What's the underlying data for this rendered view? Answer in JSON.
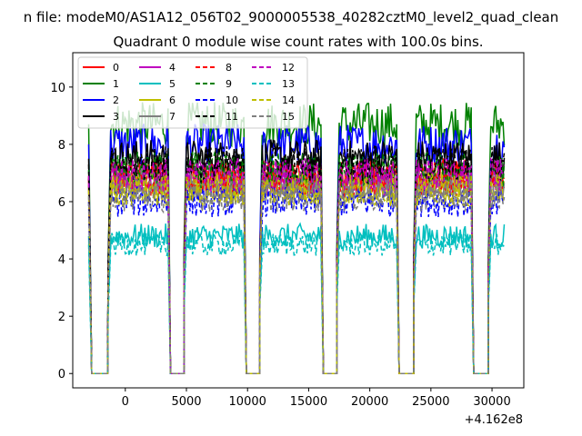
{
  "chart_data": {
    "type": "line",
    "suptitle": "n file: modeM0/AS1A12_056T02_9000005538_40282cztM0_level2_quad_clean",
    "title": "Quadrant 0 module wise count rates with 100.0s bins.",
    "xlabel": "",
    "ylabel": "",
    "x_offset_label": "+4.162e8",
    "xlim": [
      -4300,
      32600
    ],
    "ylim": [
      -0.5,
      11.2
    ],
    "xticks": [
      0,
      5000,
      10000,
      15000,
      20000,
      25000,
      30000
    ],
    "xtick_labels": [
      "0",
      "5000",
      "10000",
      "15000",
      "20000",
      "25000",
      "30000"
    ],
    "yticks": [
      0,
      2,
      4,
      6,
      8,
      10
    ],
    "ytick_labels": [
      "0",
      "2",
      "4",
      "6",
      "8",
      "10"
    ],
    "grid": false,
    "legend_position": "upper-left",
    "legend_columns": 4,
    "segments": [
      {
        "start": -3000,
        "end": -2750,
        "kind": "drop"
      },
      {
        "start": -2750,
        "end": -1400,
        "kind": "gap"
      },
      {
        "start": -1400,
        "end": 3500,
        "kind": "on"
      },
      {
        "start": 3500,
        "end": 3700,
        "kind": "drop"
      },
      {
        "start": 3700,
        "end": 4800,
        "kind": "gap"
      },
      {
        "start": 4800,
        "end": 9700,
        "kind": "on"
      },
      {
        "start": 9700,
        "end": 9900,
        "kind": "drop"
      },
      {
        "start": 9900,
        "end": 11000,
        "kind": "gap"
      },
      {
        "start": 11000,
        "end": 16000,
        "kind": "on"
      },
      {
        "start": 16000,
        "end": 16200,
        "kind": "drop"
      },
      {
        "start": 16200,
        "end": 17300,
        "kind": "gap"
      },
      {
        "start": 17300,
        "end": 22200,
        "kind": "on"
      },
      {
        "start": 22200,
        "end": 22400,
        "kind": "drop"
      },
      {
        "start": 22400,
        "end": 23600,
        "kind": "gap"
      },
      {
        "start": 23600,
        "end": 28300,
        "kind": "on"
      },
      {
        "start": 28300,
        "end": 28500,
        "kind": "drop"
      },
      {
        "start": 28500,
        "end": 29700,
        "kind": "gap"
      },
      {
        "start": 29700,
        "end": 31000,
        "kind": "on"
      }
    ],
    "series": [
      {
        "name": "0",
        "color": "#ff0000",
        "dash": "solid",
        "level": 6.9
      },
      {
        "name": "1",
        "color": "#008000",
        "dash": "solid",
        "level": 8.7
      },
      {
        "name": "2",
        "color": "#0000ff",
        "dash": "solid",
        "level": 8.0
      },
      {
        "name": "3",
        "color": "#000000",
        "dash": "solid",
        "level": 7.5
      },
      {
        "name": "4",
        "color": "#bf00bf",
        "dash": "solid",
        "level": 6.8
      },
      {
        "name": "5",
        "color": "#00bfbf",
        "dash": "solid",
        "level": 4.8
      },
      {
        "name": "6",
        "color": "#bfbf00",
        "dash": "solid",
        "level": 6.5
      },
      {
        "name": "7",
        "color": "#7f7f7f",
        "dash": "solid",
        "level": 6.6
      },
      {
        "name": "8",
        "color": "#ff0000",
        "dash": "dashed",
        "level": 6.8
      },
      {
        "name": "9",
        "color": "#008000",
        "dash": "dashed",
        "level": 7.1
      },
      {
        "name": "10",
        "color": "#0000ff",
        "dash": "dashed",
        "level": 6.0
      },
      {
        "name": "11",
        "color": "#000000",
        "dash": "dashed",
        "level": 7.3
      },
      {
        "name": "12",
        "color": "#bf00bf",
        "dash": "dashed",
        "level": 6.9
      },
      {
        "name": "13",
        "color": "#00bfbf",
        "dash": "dashed",
        "level": 4.5
      },
      {
        "name": "14",
        "color": "#bfbf00",
        "dash": "dashed",
        "level": 6.4
      },
      {
        "name": "15",
        "color": "#7f7f7f",
        "dash": "dashed",
        "level": 6.2
      }
    ]
  }
}
